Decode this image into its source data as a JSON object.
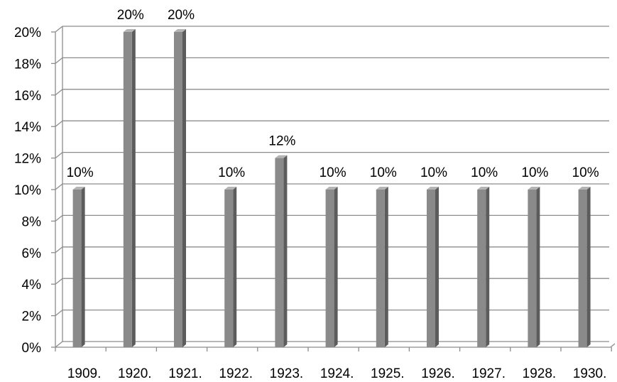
{
  "chart_data": {
    "type": "bar",
    "style": "3d-column",
    "categories": [
      "1909.",
      "1920.",
      "1921.",
      "1922.",
      "1923.",
      "1924.",
      "1925.",
      "1926.",
      "1927.",
      "1928.",
      "1930."
    ],
    "values": [
      10,
      20,
      20,
      10,
      12,
      10,
      10,
      10,
      10,
      10,
      10
    ],
    "data_labels": [
      "10%",
      "20%",
      "20%",
      "10%",
      "12%",
      "10%",
      "10%",
      "10%",
      "10%",
      "10%",
      "10%"
    ],
    "y_ticks": [
      "0%",
      "2%",
      "4%",
      "6%",
      "8%",
      "10%",
      "12%",
      "14%",
      "16%",
      "18%",
      "20%"
    ],
    "ylim": [
      0,
      20
    ],
    "grid": true,
    "legend": "none",
    "colors": {
      "bar_front": "#8a8a8a",
      "bar_side": "#5c5c5c",
      "bar_top": "#b4b4b4",
      "grid": "#8c8c8c",
      "axis": "#8c8c8c",
      "text": "#000000"
    }
  }
}
